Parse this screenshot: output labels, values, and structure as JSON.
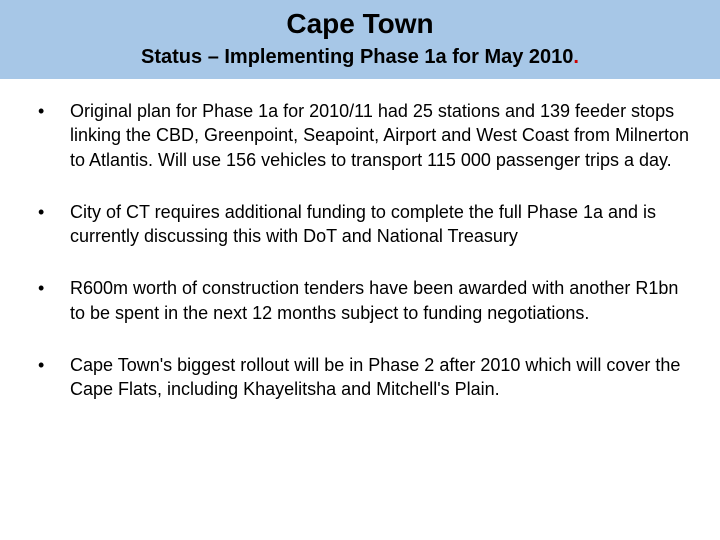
{
  "header": {
    "title": "Cape Town",
    "subtitle": "Status – Implementing Phase 1a for May 2010",
    "subtitle_period": ".",
    "background_color": "#a7c7e7",
    "title_fontsize": 28,
    "subtitle_fontsize": 20,
    "period_color": "#cc0000"
  },
  "body": {
    "bullets": [
      {
        "text": "Original plan for Phase 1a for 2010/11 had 25 stations and 139 feeder stops linking the CBD, Greenpoint, Seapoint, Airport and West Coast from Milnerton to Atlantis. Will use 156 vehicles to transport 115 000 passenger trips a day."
      },
      {
        "text": "City of CT requires additional funding to complete the full Phase 1a and is currently discussing this with DoT and National Treasury"
      },
      {
        "text": "R600m worth of construction tenders have been  awarded with another R1bn to be spent in the next 12 months subject to funding negotiations."
      },
      {
        "text": "Cape Town's biggest rollout will be in Phase 2 after 2010 which will cover the Cape Flats, including Khayelitsha and Mitchell's Plain."
      }
    ],
    "bullet_marker": "•",
    "text_fontsize": 18,
    "text_color": "#000000",
    "background_color": "#ffffff"
  }
}
